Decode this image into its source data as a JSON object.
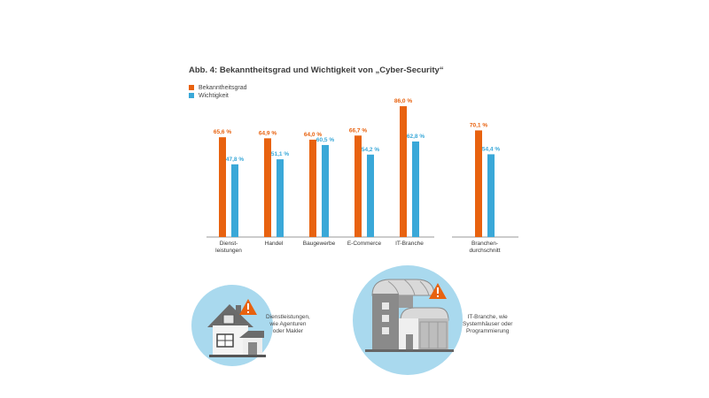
{
  "chart_data": {
    "type": "bar",
    "title": "Abb. 4: Bekanntheitsgrad und Wichtigkeit von „Cyber-Security“",
    "categories": [
      [
        "Dienst-",
        "leistungen"
      ],
      [
        "Handel"
      ],
      [
        "Baugewerbe"
      ],
      [
        "E-Commerce"
      ],
      [
        "IT-Branche"
      ],
      [
        "Branchen-",
        "durchschnitt"
      ]
    ],
    "series": [
      {
        "name": "Bekanntheitsgrad",
        "color": "#e8620f",
        "values": [
          65.6,
          64.9,
          64.0,
          66.7,
          86.0,
          70.1
        ],
        "labels": [
          "65,6 %",
          "64,9 %",
          "64,0 %",
          "66,7 %",
          "86,0 %",
          "70,1 %"
        ]
      },
      {
        "name": "Wichtigkeit",
        "color": "#3aa8d8",
        "values": [
          47.8,
          51.1,
          60.5,
          54.2,
          62.8,
          54.4
        ],
        "labels": [
          "47,8 %",
          "51,1 %",
          "60,5 %",
          "54,2 %",
          "62,8 %",
          "54,4 %"
        ]
      }
    ],
    "ylim": [
      0,
      100
    ],
    "xlabel": "",
    "ylabel": "",
    "grid": false,
    "legend": "top-left"
  },
  "callouts": {
    "left": {
      "lines": [
        "Dienstleistungen,",
        "wie Agenturen",
        "oder Makler"
      ]
    },
    "right": {
      "lines": [
        "IT-Branche, wie",
        "Systemhäuser oder",
        "Programmierung"
      ]
    }
  },
  "colors": {
    "orange": "#e8620f",
    "blue": "#3aa8d8",
    "circle": "#a9d9ee",
    "axis": "#9a9a9a"
  }
}
